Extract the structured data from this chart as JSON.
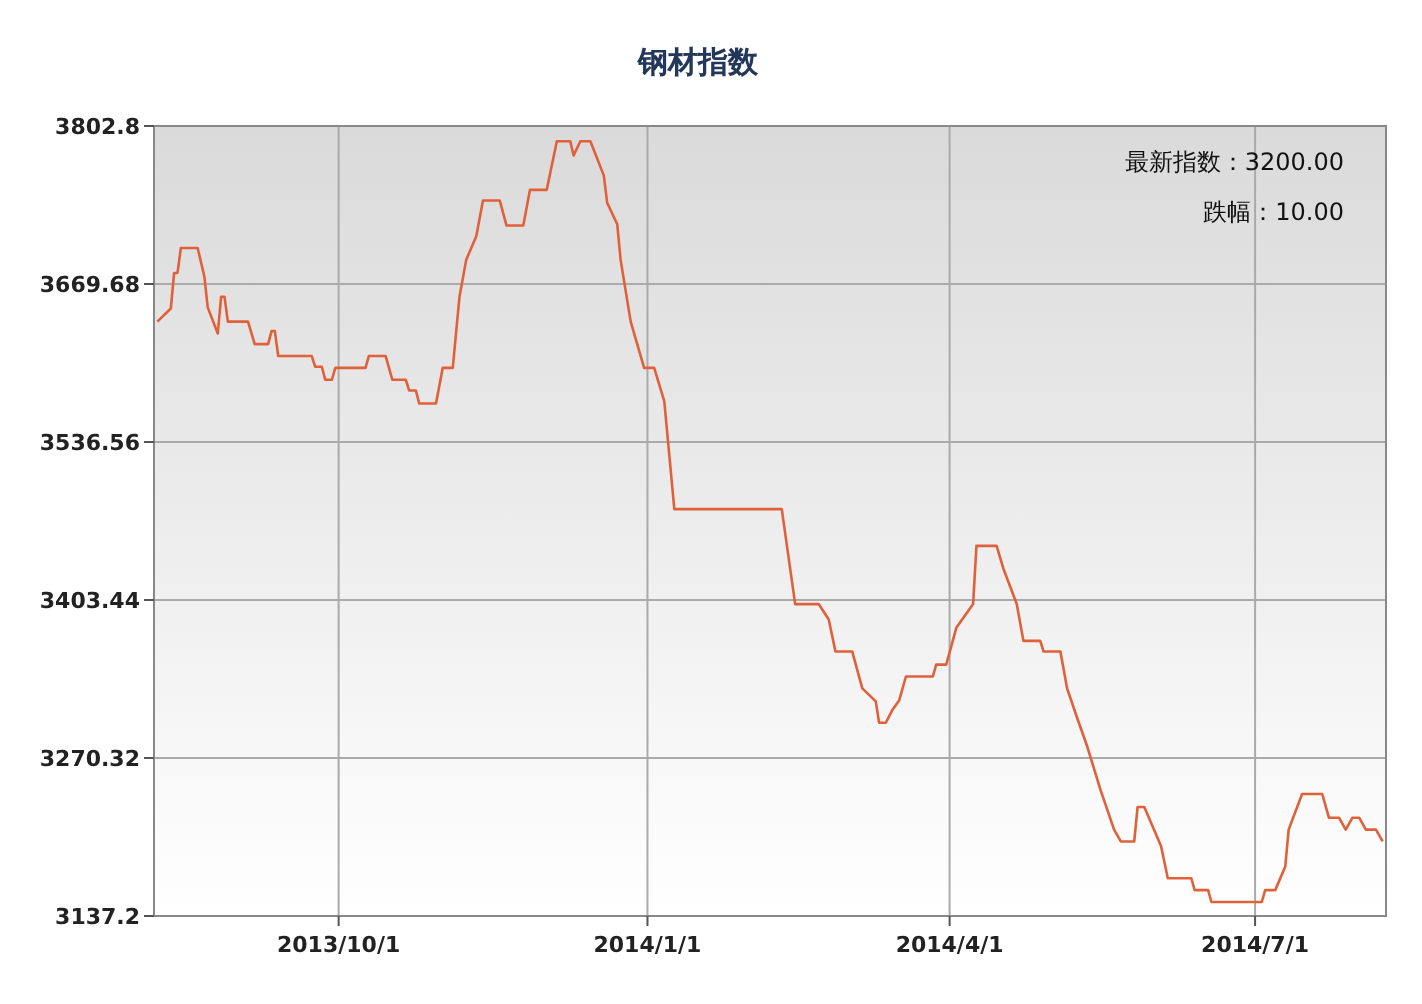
{
  "chart_data": {
    "type": "line",
    "title": "钢材指数",
    "annotations": [
      "最新指数：3200.00",
      "跌幅：10.00"
    ],
    "x": [
      "2013-08-08",
      "2013-08-12",
      "2013-08-13",
      "2013-08-14",
      "2013-08-15",
      "2013-08-20",
      "2013-08-22",
      "2013-08-23",
      "2013-08-26",
      "2013-08-27",
      "2013-08-28",
      "2013-08-29",
      "2013-09-04",
      "2013-09-06",
      "2013-09-10",
      "2013-09-11",
      "2013-09-12",
      "2013-09-13",
      "2013-09-23",
      "2013-09-24",
      "2013-09-26",
      "2013-09-27",
      "2013-09-29",
      "2013-09-30",
      "2013-10-09",
      "2013-10-10",
      "2013-10-15",
      "2013-10-17",
      "2013-10-21",
      "2013-10-22",
      "2013-10-24",
      "2013-10-25",
      "2013-10-30",
      "2013-11-01",
      "2013-11-04",
      "2013-11-06",
      "2013-11-08",
      "2013-11-11",
      "2013-11-13",
      "2013-11-18",
      "2013-11-20",
      "2013-11-25",
      "2013-11-27",
      "2013-12-02",
      "2013-12-05",
      "2013-12-09",
      "2013-12-10",
      "2013-12-12",
      "2013-12-15",
      "2013-12-19",
      "2013-12-20",
      "2013-12-23",
      "2013-12-24",
      "2013-12-27",
      "2013-12-31",
      "2014-01-03",
      "2014-01-06",
      "2014-01-09",
      "2014-02-10",
      "2014-02-14",
      "2014-02-21",
      "2014-02-24",
      "2014-02-26",
      "2014-03-03",
      "2014-03-06",
      "2014-03-10",
      "2014-03-11",
      "2014-03-13",
      "2014-03-15",
      "2014-03-17",
      "2014-03-19",
      "2014-03-27",
      "2014-03-28",
      "2014-03-31",
      "2014-04-03",
      "2014-04-08",
      "2014-04-09",
      "2014-04-15",
      "2014-04-17",
      "2014-04-21",
      "2014-04-23",
      "2014-04-28",
      "2014-04-29",
      "2014-05-04",
      "2014-05-06",
      "2014-05-09",
      "2014-05-12",
      "2014-05-16",
      "2014-05-20",
      "2014-05-22",
      "2014-05-26",
      "2014-05-27",
      "2014-05-29",
      "2014-06-03",
      "2014-06-05",
      "2014-06-12",
      "2014-06-13",
      "2014-06-17",
      "2014-06-18",
      "2014-07-03",
      "2014-07-04",
      "2014-07-07",
      "2014-07-10",
      "2014-07-11",
      "2014-07-15",
      "2014-07-21",
      "2014-07-23",
      "2014-07-26",
      "2014-07-28",
      "2014-07-30",
      "2014-08-01",
      "2014-08-03",
      "2014-08-06",
      "2014-08-08"
    ],
    "series": [
      {
        "color": "#e0603a",
        "values": [
          3638,
          3649,
          3679,
          3679,
          3700,
          3700,
          3676,
          3650,
          3628,
          3659,
          3659,
          3638,
          3638,
          3619,
          3619,
          3630,
          3630,
          3609,
          3609,
          3600,
          3600,
          3589,
          3589,
          3599,
          3599,
          3609,
          3609,
          3589,
          3589,
          3580,
          3580,
          3569,
          3569,
          3599,
          3599,
          3659,
          3690,
          3710,
          3740,
          3740,
          3719,
          3719,
          3749,
          3749,
          3790,
          3790,
          3778,
          3790,
          3790,
          3761,
          3738,
          3720,
          3690,
          3638,
          3599,
          3599,
          3571,
          3480,
          3480,
          3400,
          3400,
          3387,
          3360,
          3360,
          3329,
          3318,
          3300,
          3300,
          3311,
          3319,
          3339,
          3339,
          3349,
          3349,
          3380,
          3400,
          3449,
          3449,
          3430,
          3400,
          3369,
          3369,
          3360,
          3360,
          3329,
          3304,
          3280,
          3243,
          3210,
          3200,
          3200,
          3229,
          3229,
          3196,
          3169,
          3169,
          3159,
          3159,
          3149,
          3149,
          3159,
          3159,
          3179,
          3210,
          3240,
          3240,
          3220,
          3220,
          3210,
          3220,
          3220,
          3210,
          3210,
          3200
        ]
      }
    ],
    "xlim": [
      "2013-08-07",
      "2014-08-09"
    ],
    "xticks": [
      {
        "value": "2013-10-01",
        "label": "2013/10/1"
      },
      {
        "value": "2014-01-01",
        "label": "2014/1/1"
      },
      {
        "value": "2014-04-01",
        "label": "2014/4/1"
      },
      {
        "value": "2014-07-01",
        "label": "2014/7/1"
      }
    ],
    "ylim": [
      3137.2,
      3802.8
    ],
    "yticks": [
      3137.2,
      3270.32,
      3403.44,
      3536.56,
      3669.68,
      3802.8
    ],
    "grid": true,
    "marker": "none",
    "line_style": "solid"
  }
}
